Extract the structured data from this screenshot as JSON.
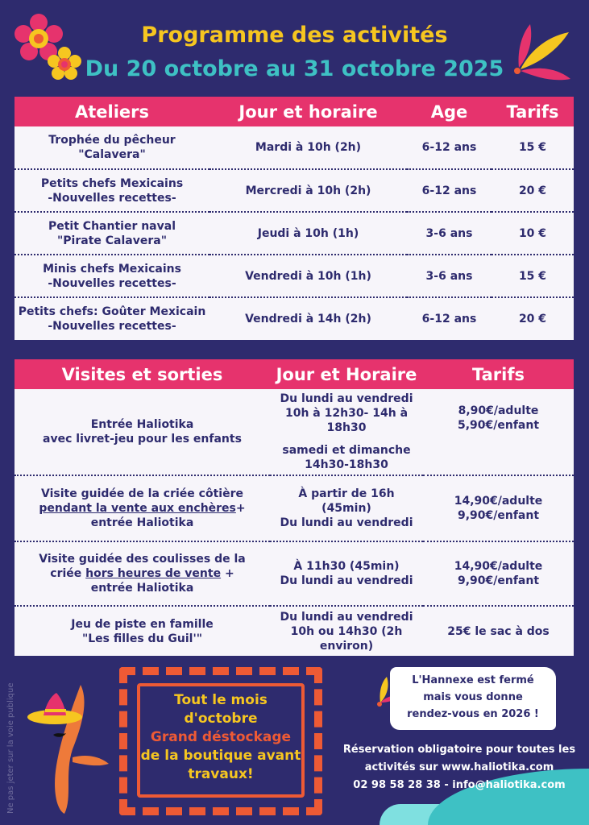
{
  "title": "Programme des activités",
  "subtitle": "Du 20 octobre au 31 octobre 2025",
  "colors": {
    "background": "#2e2b6e",
    "header": "#e6336d",
    "title": "#f6c620",
    "subtitle": "#3ec1c4",
    "accent_orange": "#ee5a35"
  },
  "ateliers": {
    "headers": [
      "Ateliers",
      "Jour et horaire",
      "Age",
      "Tarifs"
    ],
    "rows": [
      {
        "name": [
          "Trophée du pêcheur",
          "\"Calavera\""
        ],
        "time": "Mardi à 10h (2h)",
        "age": "6-12 ans",
        "price": "15 €"
      },
      {
        "name": [
          "Petits chefs Mexicains",
          "-Nouvelles recettes-"
        ],
        "time": "Mercredi à 10h (2h)",
        "age": "6-12 ans",
        "price": "20 €"
      },
      {
        "name": [
          "Petit Chantier naval",
          "\"Pirate Calavera\""
        ],
        "time": "Jeudi à 10h (1h)",
        "age": "3-6 ans",
        "price": "10 €"
      },
      {
        "name": [
          "Minis chefs Mexicains",
          "-Nouvelles recettes-"
        ],
        "time": "Vendredi à 10h (1h)",
        "age": "3-6 ans",
        "price": "15 €"
      },
      {
        "name": [
          "Petits chefs: Goûter Mexicain",
          "-Nouvelles recettes-"
        ],
        "time": "Vendredi à 14h (2h)",
        "age": "6-12 ans",
        "price": "20 €"
      }
    ]
  },
  "visites": {
    "headers": [
      "Visites et sorties",
      "Jour et Horaire",
      "Tarifs"
    ],
    "rows": [
      {
        "name": [
          "Entrée Haliotika",
          "avec livret-jeu pour les enfants"
        ],
        "time": [
          "Du lundi au vendredi",
          "10h à 12h30- 14h à 18h30",
          "samedi et dimanche",
          "14h30-18h30"
        ],
        "price": [
          "8,90€/adulte",
          "5,90€/enfant"
        ]
      },
      {
        "name": [
          "Visite guidée de la criée côtière",
          "pendant la vente aux enchères",
          "+",
          "entrée Haliotika"
        ],
        "time": [
          "À partir de 16h (45min)",
          "Du lundi au vendredi"
        ],
        "price": [
          "14,90€/adulte",
          "9,90€/enfant"
        ]
      },
      {
        "name": [
          "Visite guidée des coulisses de la",
          "criée ",
          "hors heures de vente",
          " +",
          "entrée Haliotika"
        ],
        "time": [
          "À 11h30 (45min)",
          "Du lundi au vendredi"
        ],
        "price": [
          "14,90€/adulte",
          "9,90€/enfant"
        ]
      },
      {
        "name": [
          "Jeu de piste en famille",
          "\"Les filles du Guil'\""
        ],
        "time": [
          "Du lundi au vendredi",
          "10h ou 14h30 (2h environ)"
        ],
        "price": [
          "25€ le sac à dos"
        ]
      }
    ]
  },
  "promo": [
    "Tout le mois",
    "d'octobre",
    "Grand déstockage",
    "de la boutique avant",
    "travaux!"
  ],
  "notice": [
    "L'Hannexe est fermé",
    "mais vous donne",
    "rendez-vous en 2026 !"
  ],
  "reservation": [
    "Réservation obligatoire pour toutes les",
    "activités sur www.haliotika.com",
    "02 98 58 28 38 - info@haliotika.com"
  ],
  "side_note": "Ne pas jeter sur la voie publique"
}
